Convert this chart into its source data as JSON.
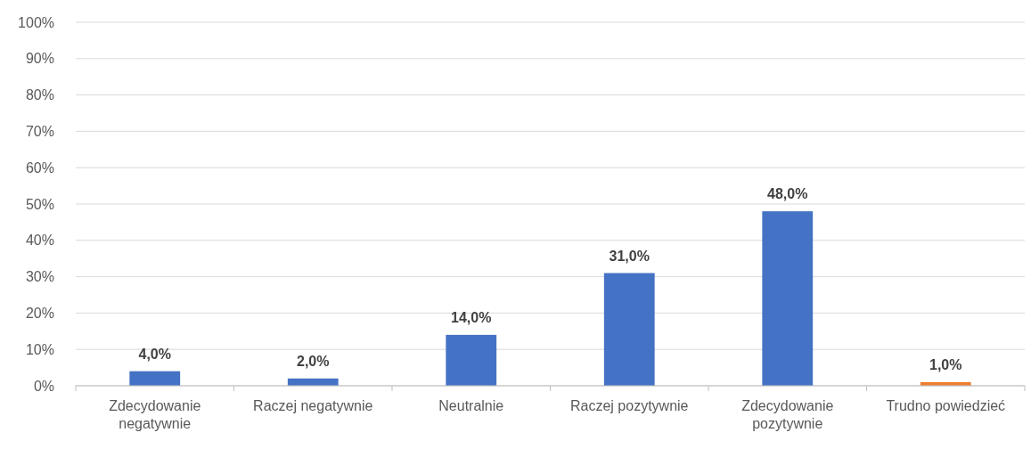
{
  "chart_data": {
    "type": "bar",
    "categories": [
      "Zdecydowanie negatywnie",
      "Raczej negatywnie",
      "Neutralnie",
      "Raczej pozytywnie",
      "Zdecydowanie pozytywnie",
      "Trudno powiedzieć"
    ],
    "values": [
      4,
      2,
      14,
      31,
      48,
      1
    ],
    "colors": [
      "#4472c4",
      "#4472c4",
      "#4472c4",
      "#4472c4",
      "#4472c4",
      "#ed7d31"
    ],
    "value_labels": [
      "4,0%",
      "2,0%",
      "14,0%",
      "31,0%",
      "48,0%",
      "1,0%"
    ],
    "ylim": [
      0,
      100
    ],
    "yticks": [
      {
        "value": 0,
        "label": "0%"
      },
      {
        "value": 10,
        "label": "10%"
      },
      {
        "value": 20,
        "label": "20%"
      },
      {
        "value": 30,
        "label": "30%"
      },
      {
        "value": 40,
        "label": "40%"
      },
      {
        "value": 50,
        "label": "50%"
      },
      {
        "value": 60,
        "label": "60%"
      },
      {
        "value": 70,
        "label": "70%"
      },
      {
        "value": 80,
        "label": "80%"
      },
      {
        "value": 90,
        "label": "90%"
      },
      {
        "value": 100,
        "label": "100%"
      }
    ],
    "grid": "y"
  }
}
